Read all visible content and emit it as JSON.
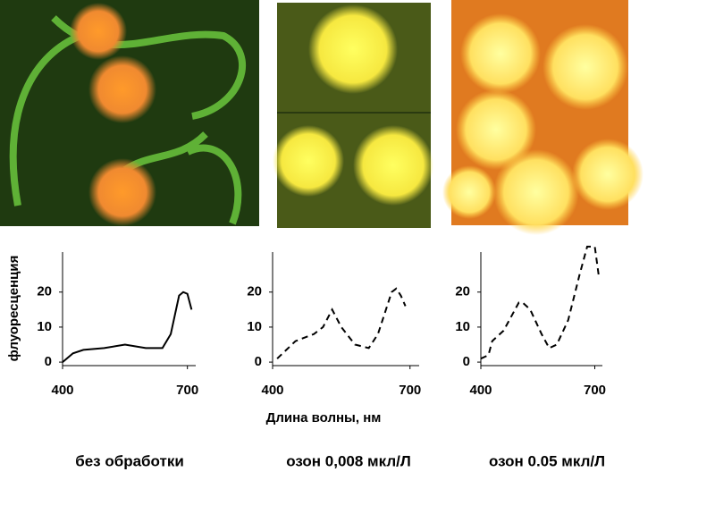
{
  "chart_data": [
    {
      "type": "line",
      "ylabel": "флуоресценция",
      "caption": "без обработки",
      "x": [
        400,
        425,
        450,
        500,
        550,
        600,
        640,
        660,
        680,
        690,
        700,
        710
      ],
      "series": [
        {
          "color": "#000000",
          "line_style": "solid",
          "values": [
            0,
            2.5,
            3.5,
            4,
            5,
            4,
            4,
            8,
            19,
            20,
            19.5,
            15
          ]
        }
      ],
      "xlim": [
        400,
        720
      ],
      "ylim": [
        -1,
        35
      ],
      "xticks": [
        400,
        700
      ],
      "yticks": [
        0,
        10,
        20
      ]
    },
    {
      "type": "line",
      "xlabel": "Длина волны, нм",
      "caption": "озон 0,008 мкл/Л",
      "x": [
        410,
        450,
        490,
        510,
        530,
        550,
        580,
        610,
        630,
        660,
        670,
        680,
        690
      ],
      "series": [
        {
          "color": "#000000",
          "line_style": "dashed",
          "values": [
            1,
            6,
            8,
            10,
            15,
            10,
            5,
            4,
            8,
            20,
            21,
            19,
            16
          ]
        }
      ],
      "xlim": [
        400,
        720
      ],
      "ylim": [
        -1,
        35
      ],
      "xticks": [
        400,
        700
      ],
      "yticks": [
        0,
        10,
        20
      ]
    },
    {
      "type": "line",
      "caption": "озон 0.05 мкл/Л",
      "x": [
        400,
        420,
        430,
        460,
        480,
        500,
        510,
        530,
        560,
        580,
        600,
        630,
        660,
        680,
        700,
        710
      ],
      "series": [
        {
          "color": "#000000",
          "line_style": "dashed",
          "values": [
            1,
            2,
            6,
            9,
            13,
            17,
            17,
            15,
            8,
            4,
            5,
            12,
            25,
            33,
            33,
            25
          ]
        }
      ],
      "xlim": [
        400,
        720
      ],
      "ylim": [
        -1,
        35
      ],
      "xticks": [
        400,
        700
      ],
      "yticks": [
        0,
        10,
        20
      ]
    }
  ]
}
